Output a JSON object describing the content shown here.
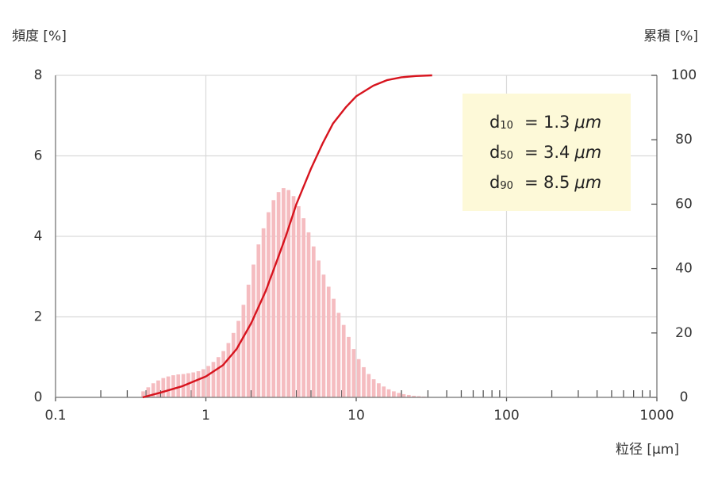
{
  "chart_data": {
    "type": "histogram",
    "y_label": "頻度 [%]",
    "y2_label": "累積 [%]",
    "x_label": "粒径 [µm]",
    "xlog": true,
    "xlim": [
      0.1,
      1000
    ],
    "xticks": [
      0.1,
      1,
      10,
      100,
      1000
    ],
    "xminorticks": [
      0.2,
      0.3,
      0.4,
      0.5,
      0.6,
      0.7,
      0.8,
      0.9,
      2,
      3,
      4,
      5,
      6,
      7,
      8,
      9,
      20,
      30,
      40,
      50,
      60,
      70,
      80,
      90,
      200,
      300,
      400,
      500,
      600,
      700,
      800,
      900
    ],
    "xgrid": [
      1,
      10,
      100
    ],
    "ylim": [
      0,
      8
    ],
    "yticks": [
      0,
      2,
      4,
      6,
      8
    ],
    "y2lim": [
      0,
      100
    ],
    "y2ticks": [
      0,
      20,
      40,
      60,
      80,
      100
    ],
    "grid": true,
    "color": "#f5bcc0",
    "bins": [
      0.3687,
      0.3981,
      0.4299,
      0.4642,
      0.5012,
      0.5412,
      0.5843,
      0.631,
      0.6813,
      0.7356,
      0.7943,
      0.8577,
      0.9261,
      1.0,
      1.08,
      1.166,
      1.259,
      1.359,
      1.468,
      1.585,
      1.711,
      1.848,
      1.995,
      2.154,
      2.326,
      2.512,
      2.712,
      2.929,
      3.162,
      3.415,
      3.687,
      3.981,
      4.299,
      4.642,
      5.012,
      5.412,
      5.843,
      6.31,
      6.813,
      7.356,
      7.943,
      8.577,
      9.261,
      10.0,
      10.8,
      11.66,
      12.59,
      13.59,
      14.68,
      15.85,
      17.11,
      18.48,
      19.95,
      21.54,
      23.26,
      25.12,
      27.12,
      29.29,
      31.62
    ],
    "values": [
      0.15,
      0.25,
      0.35,
      0.42,
      0.48,
      0.52,
      0.55,
      0.57,
      0.58,
      0.6,
      0.62,
      0.65,
      0.7,
      0.78,
      0.88,
      1.0,
      1.15,
      1.35,
      1.6,
      1.9,
      2.3,
      2.8,
      3.3,
      3.8,
      4.2,
      4.6,
      4.9,
      5.1,
      5.2,
      5.15,
      5.0,
      4.75,
      4.45,
      4.1,
      3.75,
      3.4,
      3.05,
      2.75,
      2.45,
      2.1,
      1.8,
      1.5,
      1.2,
      0.95,
      0.75,
      0.58,
      0.45,
      0.35,
      0.27,
      0.2,
      0.15,
      0.11,
      0.08,
      0.06,
      0.04,
      0.03,
      0.02,
      0.01
    ],
    "cumulative": {
      "axis": "y2",
      "color": "#d7141e",
      "x": [
        0.38,
        0.5,
        0.7,
        1,
        1.3,
        1.6,
        2,
        2.5,
        3,
        3.4,
        4,
        5,
        6,
        7,
        8.5,
        10,
        13,
        16,
        20,
        25,
        32
      ],
      "values": [
        0,
        1.5,
        3.5,
        6.5,
        10,
        15,
        23,
        33,
        43,
        50,
        60,
        71,
        79,
        85,
        90,
        93.5,
        96.8,
        98.5,
        99.4,
        99.8,
        100
      ]
    },
    "annotation_box": {
      "color": "#fdf9d8",
      "items": [
        {
          "label": "d",
          "subscript": "10",
          "equals": "=",
          "value": 1.3,
          "unit": "μm"
        },
        {
          "label": "d",
          "subscript": "50",
          "equals": "=",
          "value": 3.4,
          "unit": "μm"
        },
        {
          "label": "d",
          "subscript": "90",
          "equals": "=",
          "value": 8.5,
          "unit": "μm"
        }
      ]
    }
  }
}
